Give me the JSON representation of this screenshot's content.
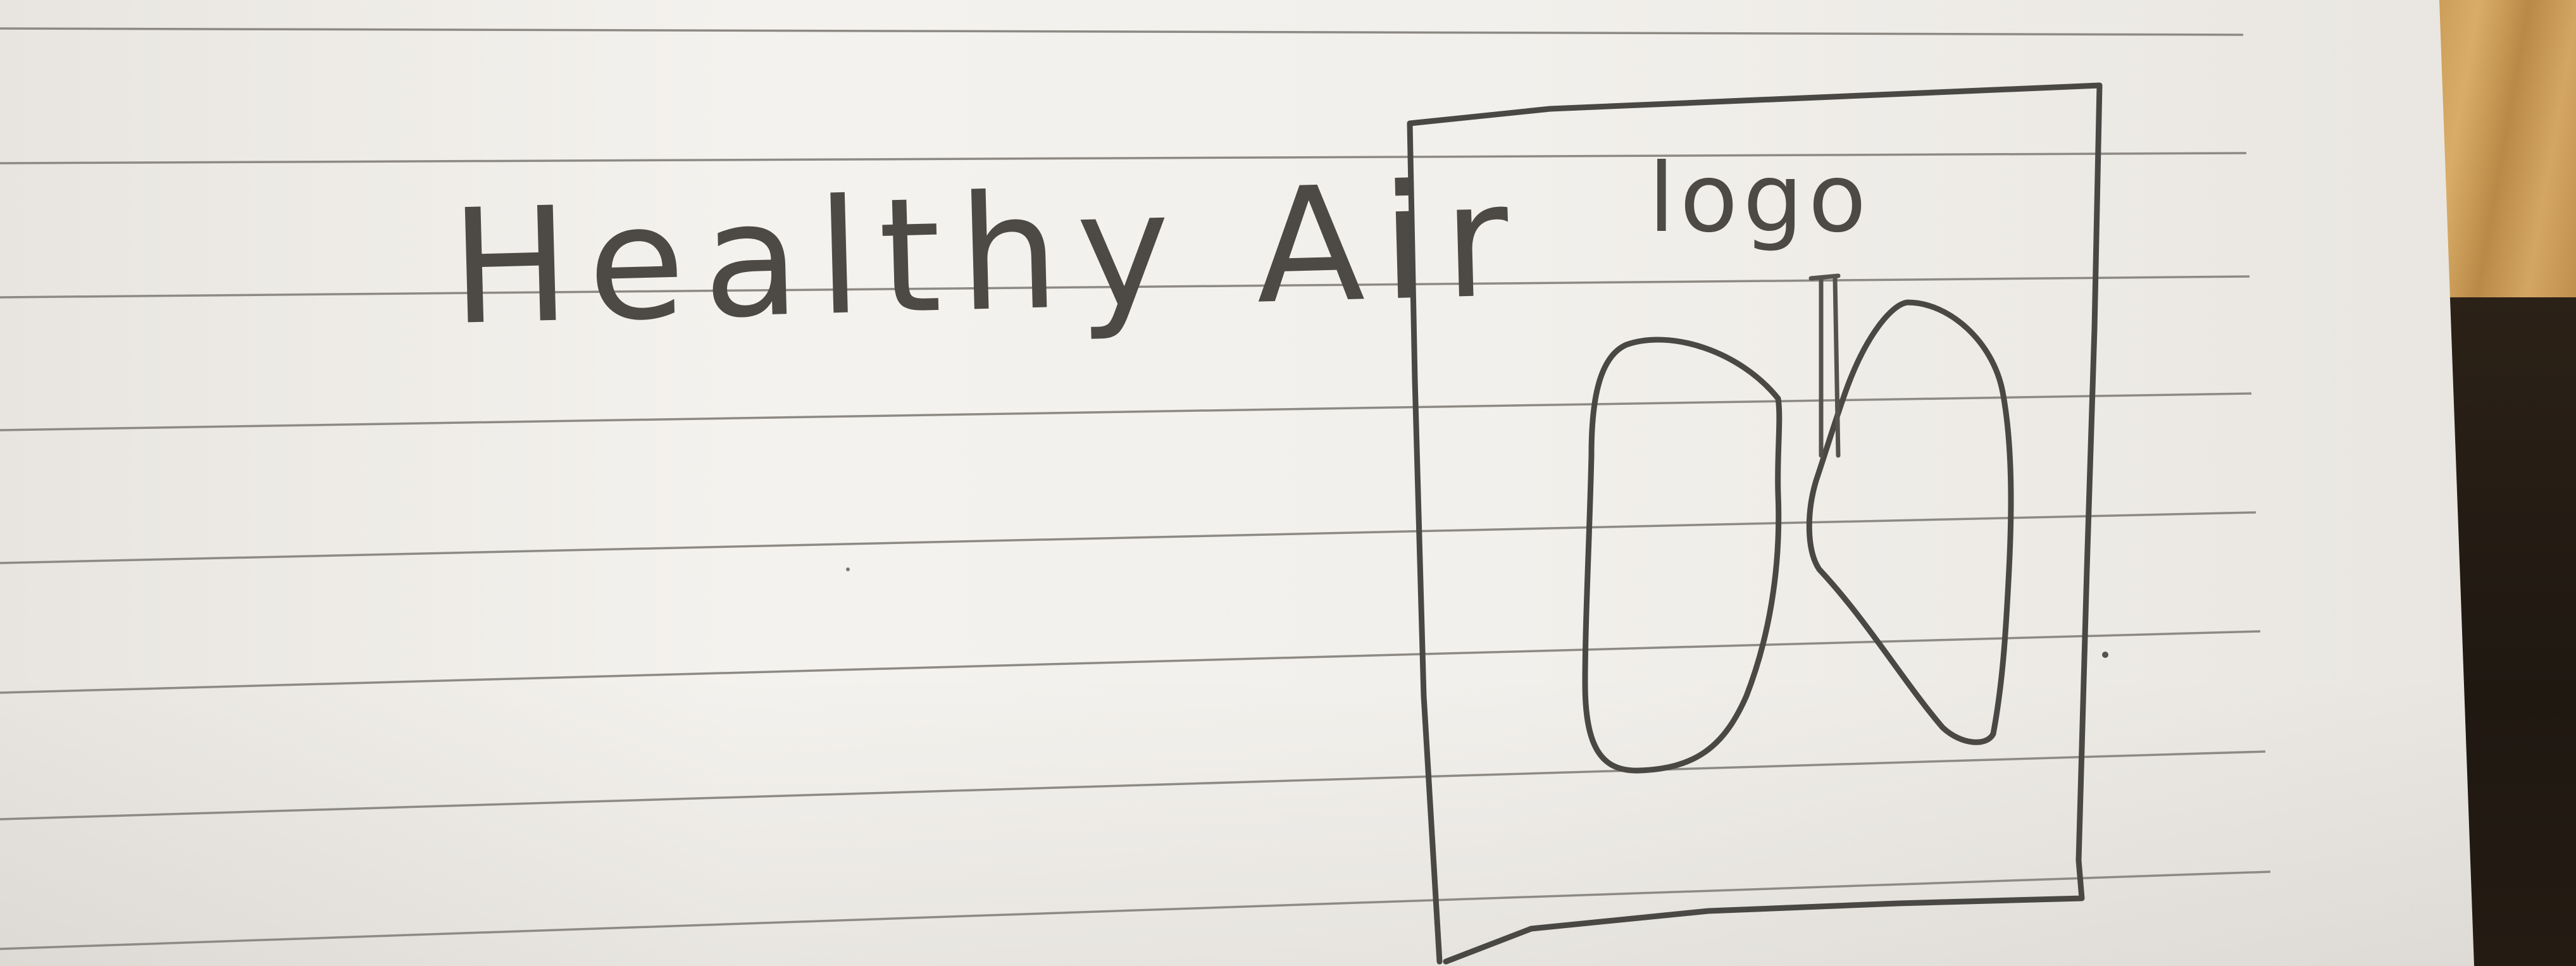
{
  "sketch": {
    "app_title": "Healthy Air",
    "logo_label": "logo",
    "logo_icon": "lungs-icon"
  },
  "colors": {
    "paper": "#f2f0ec",
    "pencil": "#4a4845",
    "rule_lines": "#8d8984",
    "table_wood": "#c89a55"
  }
}
